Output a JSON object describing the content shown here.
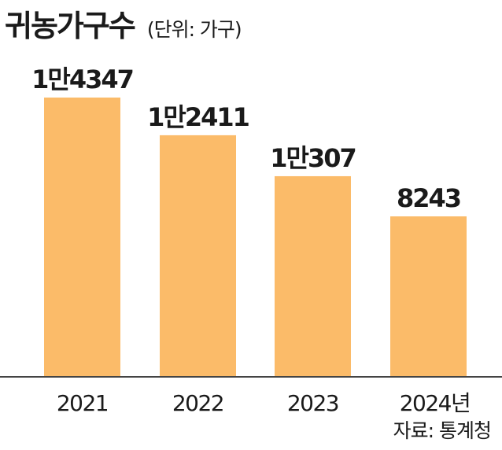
{
  "header": {
    "title": "귀농가구수",
    "unit": "(단위: 가구)"
  },
  "source": "자료: 통계청",
  "colors": {
    "bar": "#FBBB69",
    "axis": "#444444",
    "text": "#1A1A1A"
  },
  "chart_data": {
    "type": "bar",
    "categories": [
      "2021",
      "2022",
      "2023",
      "2024년"
    ],
    "values": [
      14347,
      12411,
      10307,
      8243
    ],
    "value_labels": [
      "1만4347",
      "1만2411",
      "1만307",
      "8243"
    ],
    "title": "귀농가구수",
    "unit": "가구",
    "xlabel": "",
    "ylabel": "",
    "ylim": [
      0,
      16000
    ],
    "grid": false,
    "legend": "none",
    "axis_ticks_shown": false
  }
}
